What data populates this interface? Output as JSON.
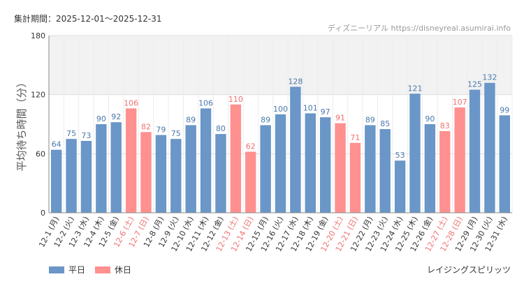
{
  "header": {
    "period_label": "集計期間：2025-12-01～2025-12-31",
    "brand_label": "ディズニーリアル https://disneyreal.asumirai.info"
  },
  "footer": {
    "attraction": "レイジングスピリッツ"
  },
  "colors": {
    "weekday": "#6a96c8",
    "holiday": "#ff9090",
    "weekday_text": "#4a78ac",
    "holiday_text": "#f07070",
    "band": "#f2f2f2",
    "grid": "#dddddd",
    "axis": "#888888"
  },
  "chart_data": {
    "type": "bar",
    "title": "",
    "xlabel": "",
    "ylabel": "平均待ち時間（分）",
    "ylim": [
      0,
      180
    ],
    "yticks": [
      0,
      60,
      120,
      180
    ],
    "band": [
      120,
      180
    ],
    "legend": [
      {
        "name": "平日",
        "kind": "weekday"
      },
      {
        "name": "休日",
        "kind": "holiday"
      }
    ],
    "categories": [
      "12-1 (月)",
      "12-2 (火)",
      "12-3 (水)",
      "12-4 (木)",
      "12-5 (金)",
      "12-6 (土)",
      "12-7 (日)",
      "12-8 (月)",
      "12-9 (火)",
      "12-10 (水)",
      "12-11 (木)",
      "12-12 (金)",
      "12-13 (土)",
      "12-14 (日)",
      "12-15 (月)",
      "12-16 (火)",
      "12-17 (水)",
      "12-18 (木)",
      "12-19 (金)",
      "12-20 (土)",
      "12-21 (日)",
      "12-22 (月)",
      "12-23 (火)",
      "12-24 (水)",
      "12-25 (木)",
      "12-26 (金)",
      "12-27 (土)",
      "12-28 (日)",
      "12-29 (月)",
      "12-30 (火)",
      "12-31 (水)"
    ],
    "values": [
      64,
      75,
      73,
      90,
      92,
      106,
      82,
      79,
      75,
      89,
      106,
      80,
      110,
      62,
      89,
      100,
      128,
      101,
      97,
      91,
      71,
      89,
      85,
      53,
      121,
      90,
      83,
      107,
      125,
      132,
      99
    ],
    "day_type": [
      "weekday",
      "weekday",
      "weekday",
      "weekday",
      "weekday",
      "holiday",
      "holiday",
      "weekday",
      "weekday",
      "weekday",
      "weekday",
      "weekday",
      "holiday",
      "holiday",
      "weekday",
      "weekday",
      "weekday",
      "weekday",
      "weekday",
      "holiday",
      "holiday",
      "weekday",
      "weekday",
      "weekday",
      "weekday",
      "weekday",
      "holiday",
      "holiday",
      "weekday",
      "weekday",
      "weekday"
    ]
  }
}
